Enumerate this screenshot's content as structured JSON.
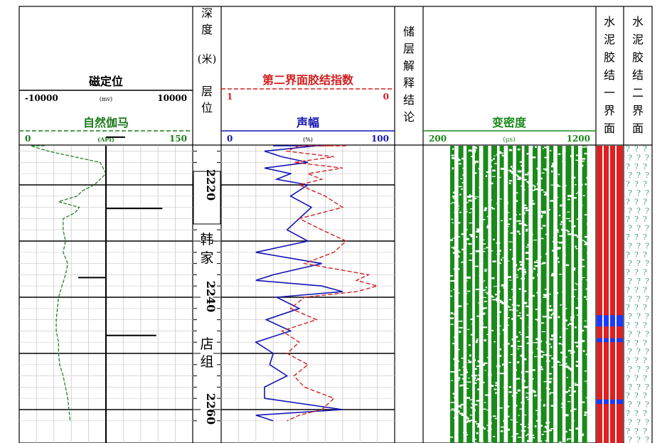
{
  "tracks": {
    "ccl": {
      "title": "磁定位",
      "min": "-10000",
      "unit": "(mv)",
      "max": "10000"
    },
    "gr": {
      "title": "自然伽马",
      "min": "0",
      "unit": "(API)",
      "max": "150",
      "color": "#1a7a1a"
    },
    "depth": {
      "header_chars": [
        "深",
        "度",
        "(米)",
        "层",
        "位"
      ],
      "labels": [
        "2220",
        "2240",
        "2260"
      ],
      "formation_chars": [
        "韩",
        "家",
        "店",
        "组"
      ]
    },
    "bond2": {
      "title": "第二界面胶结指数",
      "min": "1",
      "max": "0",
      "color": "#d42020"
    },
    "amp": {
      "title": "声幅",
      "min": "0",
      "unit": "(%)",
      "max": "100",
      "color": "#1414b4"
    },
    "interp": {
      "header_chars": [
        "储",
        "层",
        "解",
        "释",
        "结",
        "论"
      ]
    },
    "vdl": {
      "title": "变密度",
      "min": "200",
      "unit": "(μs)",
      "max": "1200",
      "color": "#1a8a1a"
    },
    "cement1": {
      "header_chars": [
        "水",
        "泥",
        "胶",
        "结",
        "一",
        "界",
        "面"
      ]
    },
    "cement2": {
      "header_chars": [
        "水",
        "泥",
        "胶",
        "结",
        "二",
        "界",
        "面"
      ],
      "unknown_symbol": "?"
    }
  },
  "chart_data": {
    "type": "line",
    "depth_range": [
      2210,
      2262
    ],
    "depth_unit": "m",
    "series": [
      {
        "name": "自然伽马",
        "depth": [
          2210,
          2212,
          2214,
          2216,
          2218,
          2220,
          2221,
          2222,
          2223,
          2224,
          2225,
          2226,
          2228,
          2230,
          2232,
          2234,
          2236,
          2238,
          2240,
          2242,
          2244,
          2246,
          2248,
          2250,
          2252,
          2254,
          2256,
          2258,
          2260,
          2262
        ],
        "values": [
          22,
          10,
          25,
          70,
          75,
          65,
          55,
          50,
          34,
          52,
          48,
          38,
          38,
          40,
          38,
          42,
          40,
          37,
          34,
          33,
          32,
          32,
          34,
          34,
          35,
          38,
          40,
          42,
          43,
          44
        ]
      },
      {
        "name": "声幅",
        "depth": [
          2210,
          2211,
          2212,
          2213,
          2214,
          2215,
          2216,
          2217,
          2218,
          2219,
          2220,
          2222,
          2224,
          2226,
          2228,
          2230,
          2232,
          2234,
          2236,
          2237,
          2238,
          2239,
          2240,
          2242,
          2244,
          2246,
          2248,
          2250,
          2252,
          2254,
          2256,
          2258,
          2260,
          2261,
          2262
        ],
        "values": [
          30,
          38,
          60,
          55,
          25,
          35,
          50,
          25,
          40,
          32,
          50,
          40,
          52,
          45,
          38,
          50,
          20,
          58,
          30,
          20,
          58,
          70,
          32,
          45,
          26,
          40,
          20,
          30,
          28,
          38,
          25,
          25,
          70,
          20,
          30
        ]
      },
      {
        "name": "第二界面胶结指数",
        "depth": [
          2210,
          2211,
          2212,
          2213,
          2214,
          2215,
          2216,
          2217,
          2218,
          2219,
          2220,
          2222,
          2224,
          2226,
          2228,
          2230,
          2232,
          2234,
          2236,
          2237,
          2238,
          2239,
          2240,
          2242,
          2244,
          2246,
          2248,
          2250,
          2252,
          2254,
          2256,
          2258,
          2260,
          2261,
          2262
        ],
        "values": [
          0.28,
          0.4,
          0.35,
          0.55,
          0.62,
          0.35,
          0.58,
          0.3,
          0.5,
          0.42,
          0.55,
          0.4,
          0.3,
          0.55,
          0.42,
          0.28,
          0.35,
          0.52,
          0.15,
          0.22,
          0.1,
          0.22,
          0.52,
          0.6,
          0.45,
          0.65,
          0.55,
          0.62,
          0.5,
          0.58,
          0.52,
          0.35,
          0.42,
          0.55,
          0.62
        ]
      },
      {
        "name": "磁定位",
        "depth": [
          2211.5,
          2224.2,
          2236.5,
          2246.8
        ],
        "values": [
          2200,
          6500,
          -3200,
          5800
        ]
      }
    ],
    "cement_bond_blue_intervals": [
      [
        2243.2,
        2245.2
      ],
      [
        2247.3,
        2248.0
      ],
      [
        2258.2,
        2259.0
      ]
    ],
    "grid": true
  }
}
